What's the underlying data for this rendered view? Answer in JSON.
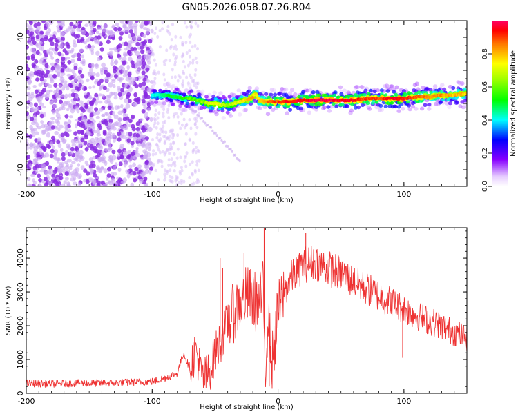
{
  "figure": {
    "title": "GN05.2026.058.07.26.R04"
  },
  "chart_data": [
    {
      "type": "heatmap",
      "id": "spectrogram",
      "xlabel": "Height of straight line (km)",
      "ylabel": "Frequency (Hz)",
      "xlim": [
        -200,
        150
      ],
      "ylim": [
        -50,
        50
      ],
      "xticks": [
        -200,
        -100,
        0,
        100
      ],
      "xtick_labels": [
        "-200",
        "-100",
        "0",
        "100"
      ],
      "yticks": [
        -40,
        -20,
        0,
        20,
        40
      ],
      "ytick_labels": [
        "-40",
        "-20",
        "0",
        "20",
        "40"
      ],
      "colorbar": {
        "label": "Normalized spectral amplitude",
        "range": [
          0,
          1
        ],
        "ticks": [
          0.0,
          0.2,
          0.4,
          0.6,
          0.8
        ],
        "tick_labels": [
          "0.0",
          "0.2",
          "0.4",
          "0.6",
          "0.8"
        ]
      },
      "noise_region_x": [
        -200,
        -100
      ],
      "sparse_noise_x": [
        -100,
        -62
      ],
      "ridge": {
        "x": [
          -100,
          -90,
          -80,
          -75,
          -70,
          -65,
          -60,
          -55,
          -50,
          -45,
          -40,
          -35,
          -30,
          -25,
          -20,
          -18,
          -15,
          -10,
          -5,
          0,
          10,
          20,
          30,
          40,
          50,
          60,
          70,
          80,
          90,
          100,
          110,
          120,
          130,
          140,
          150
        ],
        "frequency": [
          5,
          5,
          4,
          3,
          3,
          2,
          1,
          0,
          0,
          -1,
          -1,
          0,
          1,
          2,
          4,
          6,
          2,
          1,
          1,
          1,
          1,
          2,
          2,
          2,
          2,
          2,
          3,
          3,
          3,
          3,
          4,
          4,
          5,
          5,
          6
        ],
        "amplitude": [
          0.4,
          0.45,
          0.5,
          0.5,
          0.55,
          0.55,
          0.6,
          0.65,
          0.7,
          0.65,
          0.6,
          0.65,
          0.7,
          0.75,
          0.8,
          0.7,
          0.75,
          0.8,
          0.85,
          0.85,
          0.9,
          0.9,
          0.95,
          0.95,
          0.9,
          0.9,
          0.85,
          0.85,
          0.9,
          0.9,
          0.85,
          0.8,
          0.8,
          0.75,
          0.75
        ]
      },
      "faint_trail": {
        "x": [
          -70,
          -60,
          -50,
          -40,
          -30
        ],
        "frequency": [
          -2,
          -10,
          -18,
          -26,
          -35
        ]
      }
    },
    {
      "type": "line",
      "id": "snr",
      "xlabel": "Height of straight line (km)",
      "ylabel": "SNR (10 * v/v)",
      "xlim": [
        -200,
        150
      ],
      "ylim": [
        0,
        4900
      ],
      "xticks": [
        -200,
        -100,
        0,
        100
      ],
      "xtick_labels": [
        "-200",
        "-100",
        "0",
        "100"
      ],
      "yticks": [
        0,
        1000,
        2000,
        3000,
        4000
      ],
      "ytick_labels": [
        "0",
        "1000",
        "2000",
        "3000",
        "4000"
      ],
      "color": "#ee3333",
      "series": [
        {
          "name": "SNR",
          "x": [
            -200,
            -180,
            -160,
            -140,
            -120,
            -100,
            -90,
            -80,
            -75,
            -72,
            -70,
            -65,
            -62,
            -60,
            -55,
            -50,
            -45,
            -40,
            -35,
            -30,
            -25,
            -20,
            -15,
            -12,
            -10,
            -8,
            -5,
            0,
            5,
            10,
            20,
            30,
            40,
            50,
            60,
            70,
            80,
            90,
            100,
            110,
            120,
            130,
            140,
            150
          ],
          "values": [
            300,
            280,
            300,
            300,
            320,
            350,
            450,
            600,
            1200,
            900,
            800,
            1300,
            700,
            400,
            600,
            1200,
            1600,
            2100,
            2400,
            2700,
            2900,
            2800,
            2600,
            3100,
            700,
            2400,
            800,
            2400,
            3000,
            3400,
            3800,
            3900,
            3700,
            3550,
            3300,
            3100,
            2900,
            2700,
            2500,
            2300,
            2150,
            2000,
            1800,
            1650
          ]
        }
      ],
      "spikes": [
        {
          "x": -46,
          "value": 4000
        },
        {
          "x": -44,
          "value": 3700
        },
        {
          "x": -27,
          "value": 4150
        },
        {
          "x": -11,
          "value": 4900
        },
        {
          "x": -7,
          "value": 200
        },
        {
          "x": 22,
          "value": 4750
        },
        {
          "x": 99,
          "value": 1050
        }
      ]
    }
  ]
}
